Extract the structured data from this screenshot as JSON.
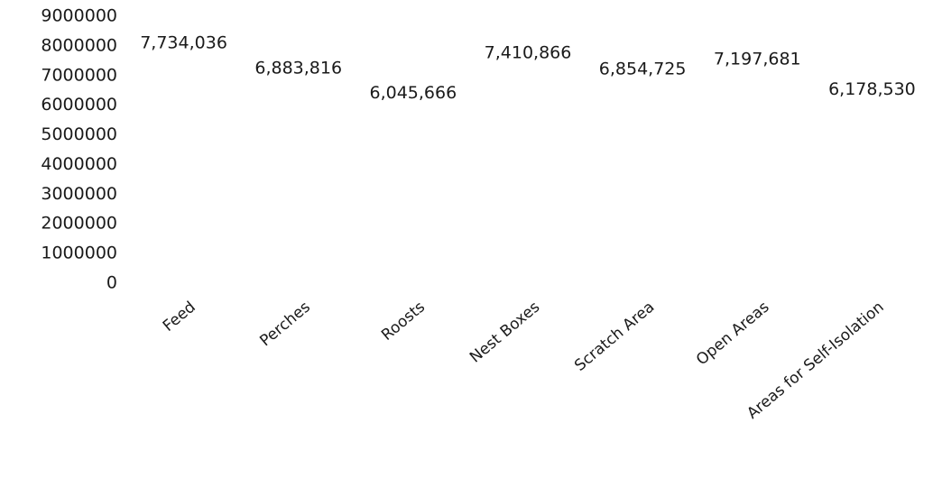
{
  "chart_data": {
    "type": "bar",
    "categories": [
      "Feed",
      "Perches",
      "Roosts",
      "Nest Boxes",
      "Scratch Area",
      "Open Areas",
      "Areas for Self-Isolation"
    ],
    "values": [
      7734036,
      6883816,
      6045666,
      7410866,
      6854725,
      7197681,
      6178530
    ],
    "data_labels": [
      "7,734,036",
      "6,883,816",
      "6,045,666",
      "7,410,866",
      "6,854,725",
      "7,197,681",
      "6,178,530"
    ],
    "ylim": [
      0,
      9000000
    ],
    "yticks": [
      "0",
      "1000000",
      "2000000",
      "3000000",
      "4000000",
      "5000000",
      "6000000",
      "7000000",
      "8000000",
      "9000000"
    ],
    "title": "",
    "xlabel": "",
    "ylabel": "",
    "grid": false,
    "legend": false,
    "bar_color": "#ffffff"
  }
}
